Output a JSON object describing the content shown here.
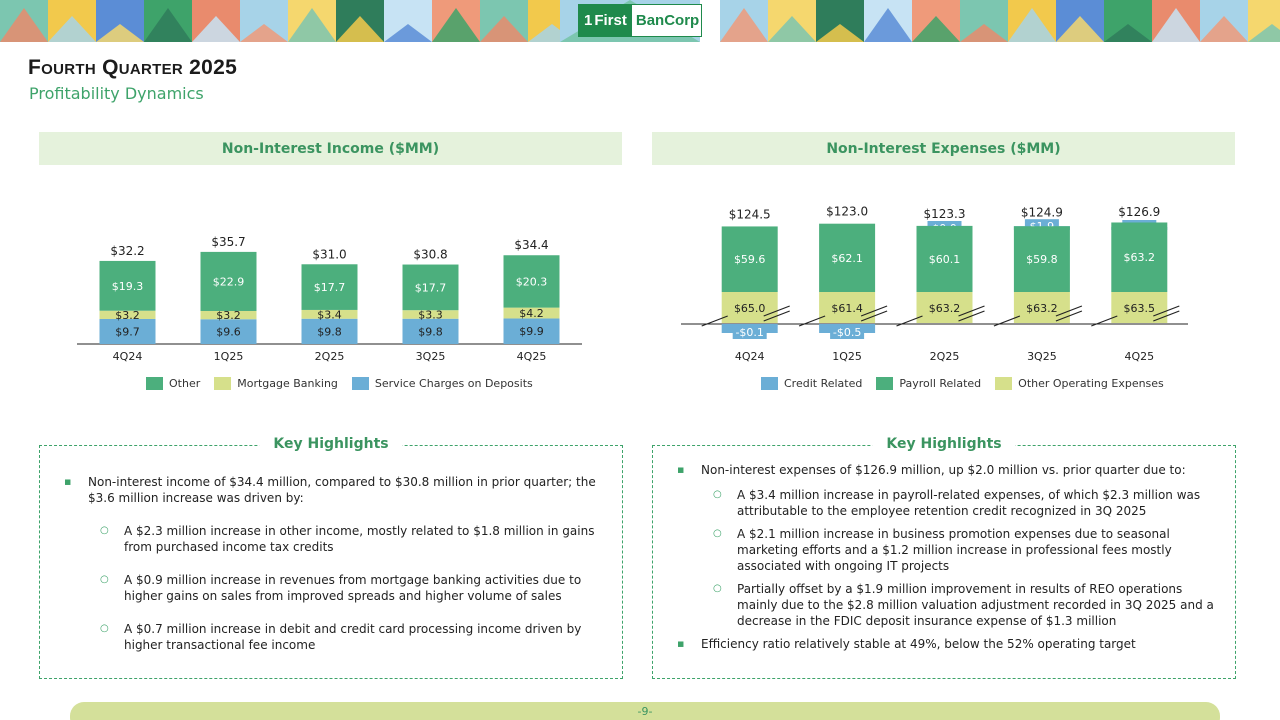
{
  "header": {
    "logo_mark": "1",
    "logo_first": "First",
    "logo_bancorp": "BanCorp",
    "banner_colors": [
      "#7cc6b0",
      "#f2c94c",
      "#5b8dd6",
      "#3ea36a",
      "#e98b6d",
      "#a7d3e8",
      "#f5d76e",
      "#2f7d5b",
      "#c7e3f4",
      "#ef9a7a"
    ]
  },
  "title": "Fourth Quarter 2025",
  "subtitle": "Profitability Dynamics",
  "left_panel": {
    "header": "Non-Interest Income ($MM)",
    "legend": [
      {
        "label": "Other",
        "color": "#4caf7d"
      },
      {
        "label": "Mortgage Banking",
        "color": "#d6e08b"
      },
      {
        "label": "Service Charges on Deposits",
        "color": "#6baed6"
      }
    ],
    "highlights_title": "Key Highlights",
    "highlights": [
      {
        "level": 1,
        "text": "Non-interest income of $34.4 million, compared to $30.8 million in prior quarter; the $3.6 million increase was driven by:"
      },
      {
        "level": 2,
        "text": "A $2.3 million increase in other income, mostly related to $1.8 million in gains from purchased income tax credits"
      },
      {
        "level": 2,
        "text": "A $0.9 million increase in revenues from mortgage banking activities due to higher gains on sales from improved spreads and higher volume of sales"
      },
      {
        "level": 2,
        "text": "A $0.7 million increase in debit and credit card processing income driven by higher transactional fee income"
      }
    ]
  },
  "right_panel": {
    "header": "Non-Interest Expenses ($MM)",
    "legend": [
      {
        "label": "Credit Related",
        "color": "#6baed6"
      },
      {
        "label": "Payroll Related",
        "color": "#4caf7d"
      },
      {
        "label": "Other Operating Expenses",
        "color": "#d6e08b"
      }
    ],
    "highlights_title": "Key Highlights",
    "highlights": [
      {
        "level": 1,
        "text": "Non-interest expenses of $126.9 million, up $2.0 million vs. prior quarter due to:"
      },
      {
        "level": 2,
        "text": "A $3.4 million increase in payroll-related expenses, of which $2.3 million was attributable to the employee retention credit recognized in 3Q 2025"
      },
      {
        "level": 2,
        "text": "A $2.1 million increase in business promotion expenses due to seasonal marketing efforts and a $1.2 million increase in professional fees mostly associated with ongoing IT projects"
      },
      {
        "level": 2,
        "text": "Partially offset by a $1.9 million improvement in results of REO operations mainly due to the $2.8 million valuation adjustment recorded in 3Q 2025 and a decrease in the FDIC deposit insurance expense of $1.3 million"
      },
      {
        "level": 1,
        "text": "Efficiency ratio relatively stable at 49%, below the 52% operating target"
      }
    ]
  },
  "chart_data": [
    {
      "type": "bar",
      "stacked": true,
      "title": "Non-Interest Income ($MM)",
      "categories": [
        "4Q24",
        "1Q25",
        "2Q25",
        "3Q25",
        "4Q25"
      ],
      "series": [
        {
          "name": "Service Charges on Deposits",
          "values": [
            9.7,
            9.6,
            9.8,
            9.8,
            9.9
          ],
          "labels": [
            "$9.7",
            "$9.6",
            "$9.8",
            "$9.8",
            "$9.9"
          ],
          "color": "#6baed6"
        },
        {
          "name": "Mortgage Banking",
          "values": [
            3.2,
            3.2,
            3.4,
            3.3,
            4.2
          ],
          "labels": [
            "$3.2",
            "$3.2",
            "$3.4",
            "$3.3",
            "$4.2"
          ],
          "color": "#d6e08b"
        },
        {
          "name": "Other",
          "values": [
            19.3,
            22.9,
            17.7,
            17.7,
            20.3
          ],
          "labels": [
            "$19.3",
            "$22.9",
            "$17.7",
            "$17.7",
            "$20.3"
          ],
          "color": "#4caf7d"
        }
      ],
      "totals": [
        "$32.2",
        "$35.7",
        "$31.0",
        "$30.8",
        "$34.4"
      ],
      "legend_position": "bottom",
      "grid": false
    },
    {
      "type": "bar",
      "stacked": true,
      "axis_break": true,
      "title": "Non-Interest Expenses ($MM)",
      "categories": [
        "4Q24",
        "1Q25",
        "2Q25",
        "3Q25",
        "4Q25"
      ],
      "series": [
        {
          "name": "Credit Related",
          "values": [
            -0.1,
            -0.5,
            0.0,
            1.9,
            0.2
          ],
          "labels": [
            "-$0.1",
            "-$0.5",
            "$0.0",
            "$1.9",
            "$0.2"
          ],
          "color": "#6baed6"
        },
        {
          "name": "Payroll Related",
          "values": [
            59.6,
            62.1,
            60.1,
            59.8,
            63.2
          ],
          "labels": [
            "$59.6",
            "$62.1",
            "$60.1",
            "$59.8",
            "$63.2"
          ],
          "color": "#4caf7d"
        },
        {
          "name": "Other Operating Expenses",
          "values": [
            65.0,
            61.4,
            63.2,
            63.2,
            63.5
          ],
          "labels": [
            "$65.0",
            "$61.4",
            "$63.2",
            "$63.2",
            "$63.5"
          ],
          "color": "#d6e08b"
        }
      ],
      "totals": [
        "$124.5",
        "$123.0",
        "$123.3",
        "$124.9",
        "$126.9"
      ],
      "legend_position": "bottom",
      "grid": false
    }
  ],
  "footer": {
    "page": "-9-"
  }
}
